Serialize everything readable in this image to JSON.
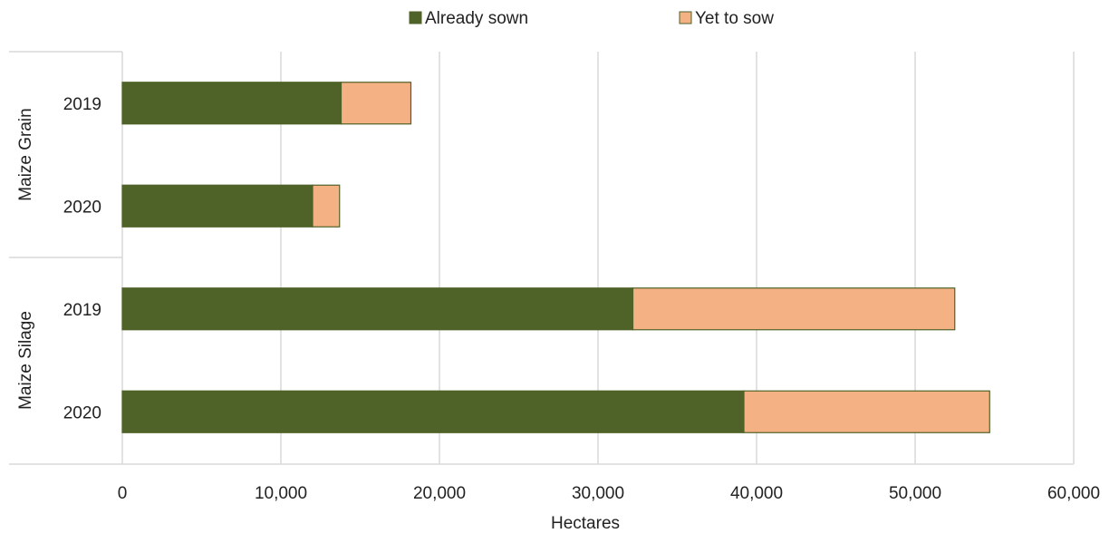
{
  "chart_data": {
    "type": "bar",
    "orientation": "horizontal",
    "stacked": true,
    "title": "",
    "xlabel": "Hectares",
    "ylabel": "",
    "xlim": [
      0,
      60000
    ],
    "x_ticks": [
      0,
      10000,
      20000,
      30000,
      40000,
      50000,
      60000
    ],
    "x_tick_labels": [
      "0",
      "10,000",
      "20,000",
      "30,000",
      "40,000",
      "50,000",
      "60,000"
    ],
    "grid": "vertical",
    "legend_position": "top",
    "groups": [
      {
        "name": "Maize Grain",
        "categories": [
          "2019",
          "2020"
        ]
      },
      {
        "name": "Maize Silage",
        "categories": [
          "2019",
          "2020"
        ]
      }
    ],
    "series": [
      {
        "name": "Already sown",
        "color": "#4f6228",
        "values": [
          13800,
          12000,
          32200,
          39200
        ]
      },
      {
        "name": "Yet to sow",
        "color": "#f4b183",
        "values": [
          4400,
          1700,
          20300,
          15500
        ]
      }
    ]
  }
}
